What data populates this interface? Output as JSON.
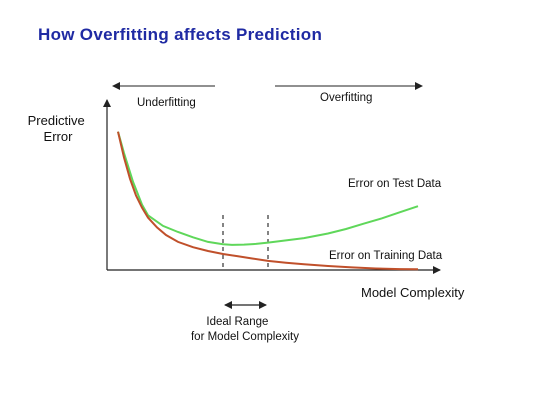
{
  "chart_data": {
    "type": "line",
    "title": "How Overfitting affects Prediction",
    "xlabel": "Model Complexity",
    "ylabel": [
      "Predictive",
      "Error"
    ],
    "regions": {
      "underfitting": "Underfitting",
      "overfitting": "Overfitting"
    },
    "ideal_range": [
      "Ideal Range",
      "for Model Complexity"
    ],
    "xlim": [
      0,
      100
    ],
    "ylim": [
      0,
      100
    ],
    "ideal_range_x": [
      35,
      50
    ],
    "grid": false,
    "series": [
      {
        "name": "Error on Test Data",
        "color": "#5fd75a",
        "x": [
          0,
          2,
          5,
          8,
          10,
          15,
          20,
          25,
          30,
          35,
          38,
          42,
          46,
          50,
          56,
          62,
          70,
          76,
          82,
          88,
          94,
          100
        ],
        "y": [
          91,
          77,
          58,
          43,
          36,
          29,
          25,
          21.5,
          18.5,
          17,
          16.5,
          16.7,
          17.2,
          18,
          19.5,
          21,
          24,
          27,
          30.5,
          34,
          38,
          42
        ]
      },
      {
        "name": "Error on Training Data",
        "color": "#c0502b",
        "x": [
          0,
          2,
          4,
          6,
          8,
          10,
          13,
          16,
          20,
          25,
          30,
          35,
          40,
          45,
          50,
          56,
          62,
          70,
          78,
          86,
          94,
          100
        ],
        "y": [
          91,
          74,
          60,
          49,
          41,
          34.5,
          28,
          23,
          18.5,
          15,
          12.5,
          10.5,
          9,
          7.5,
          6,
          4.8,
          3.8,
          2.6,
          1.7,
          1.0,
          0.6,
          0.5
        ]
      }
    ]
  }
}
